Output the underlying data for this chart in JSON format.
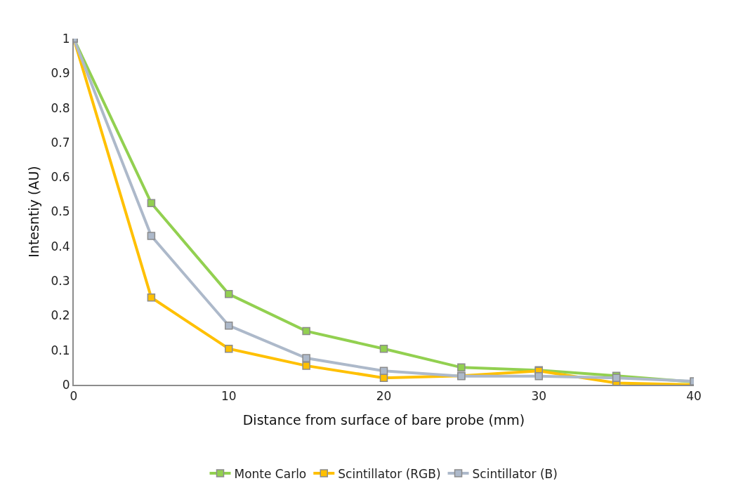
{
  "chart_data": {
    "type": "line",
    "xlabel": "Distance from surface of bare probe (mm)",
    "ylabel": "Intesntiy (AU)",
    "x": [
      0,
      5,
      10,
      15,
      20,
      25,
      30,
      35,
      40
    ],
    "series": [
      {
        "name": "Monte Carlo",
        "color": "#92d050",
        "values": [
          1,
          0.525,
          0.262,
          0.155,
          0.104,
          0.05,
          0.042,
          0.026,
          0.008
        ]
      },
      {
        "name": "Scintillator (RGB)",
        "color": "#ffc000",
        "values": [
          1,
          0.252,
          0.104,
          0.055,
          0.02,
          0.026,
          0.04,
          0.005,
          0
        ]
      },
      {
        "name": "Scintillator (B)",
        "color": "#adb9ca",
        "values": [
          1,
          0.43,
          0.171,
          0.077,
          0.04,
          0.025,
          0.025,
          0.02,
          0.01
        ]
      }
    ],
    "xlim": [
      0,
      40
    ],
    "xticks": [
      0,
      10,
      20,
      30,
      40
    ],
    "ylim": [
      0,
      1
    ],
    "yticks": [
      0,
      0.1,
      0.2,
      0.3,
      0.4,
      0.5,
      0.6,
      0.7,
      0.8,
      0.9,
      1
    ],
    "legend": "bottom",
    "marker": "square",
    "line_style": "solid"
  }
}
